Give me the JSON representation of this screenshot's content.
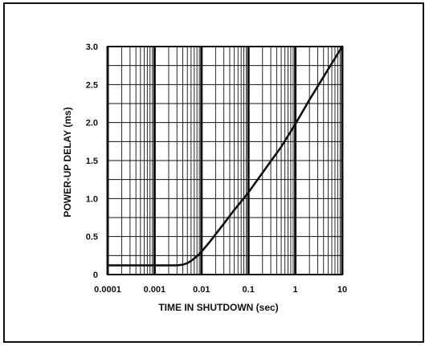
{
  "chart_data": {
    "type": "line",
    "title": "",
    "xlabel": "TIME IN SHUTDOWN (sec)",
    "ylabel": "POWER-UP DELAY (ms)",
    "x_scale": "log",
    "xlim": [
      0.0001,
      10
    ],
    "ylim": [
      0,
      3.0
    ],
    "grid": true,
    "x_ticks": [
      "0.0001",
      "0.001",
      "0.01",
      "0.1",
      "1",
      "10"
    ],
    "x_tick_values": [
      0.0001,
      0.001,
      0.01,
      0.1,
      1,
      10
    ],
    "y_ticks": [
      "0",
      "0.5",
      "1.0",
      "1.5",
      "2.0",
      "2.5",
      "3.0"
    ],
    "y_tick_values": [
      0,
      0.5,
      1.0,
      1.5,
      2.0,
      2.5,
      3.0
    ],
    "series": [
      {
        "x": [
          0.0001,
          0.0005,
          0.001,
          0.002,
          0.003,
          0.004,
          0.005,
          0.006,
          0.008,
          0.01,
          0.015,
          0.02,
          0.03,
          0.05,
          0.07,
          0.1,
          0.2,
          0.5,
          1,
          2,
          5,
          10
        ],
        "y": [
          0.12,
          0.12,
          0.12,
          0.12,
          0.12,
          0.13,
          0.15,
          0.18,
          0.24,
          0.3,
          0.43,
          0.53,
          0.67,
          0.85,
          0.96,
          1.08,
          1.34,
          1.68,
          1.98,
          2.3,
          2.7,
          3.0
        ]
      }
    ]
  }
}
